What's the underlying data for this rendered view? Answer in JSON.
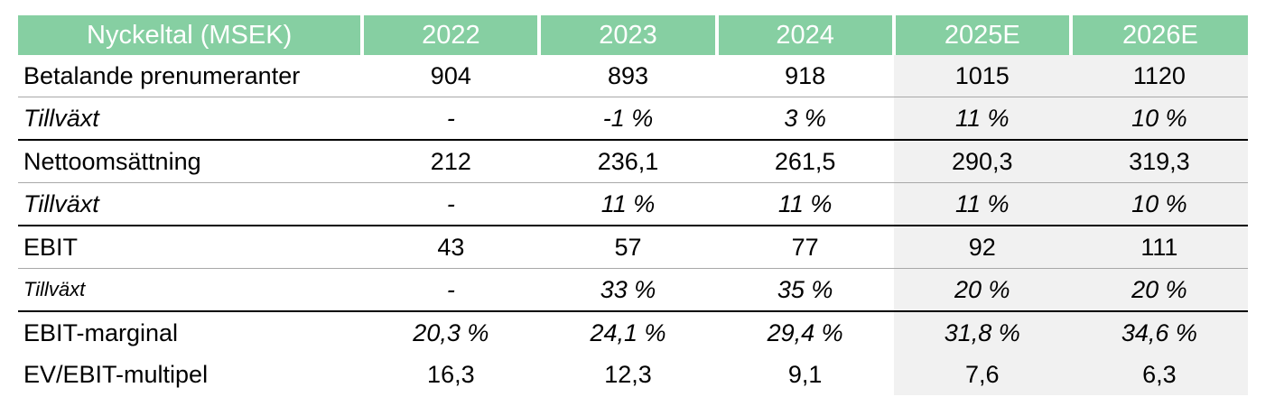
{
  "table": {
    "header": {
      "label": "Nyckeltal (MSEK)",
      "years": [
        "2022",
        "2023",
        "2024",
        "2025E",
        "2026E"
      ]
    },
    "rows": [
      {
        "label": "Betalande prenumeranter",
        "values": [
          "904",
          "893",
          "918",
          "1015",
          "1120"
        ]
      },
      {
        "label": "Tillväxt",
        "values": [
          "-",
          "-1 %",
          "3 %",
          "11 %",
          "10 %"
        ]
      },
      {
        "label": "Nettoomsättning",
        "values": [
          "212",
          "236,1",
          "261,5",
          "290,3",
          "319,3"
        ]
      },
      {
        "label": "Tillväxt",
        "values": [
          "-",
          "11 %",
          "11 %",
          "11 %",
          "10 %"
        ]
      },
      {
        "label": "EBIT",
        "values": [
          "43",
          "57",
          "77",
          "92",
          "111"
        ]
      },
      {
        "label": "Tillväxt",
        "values": [
          "-",
          "33 %",
          "35 %",
          "20 %",
          "20 %"
        ]
      },
      {
        "label": "EBIT-marginal",
        "values": [
          "20,3 %",
          "24,1 %",
          "29,4 %",
          "31,8 %",
          "34,6 %"
        ]
      },
      {
        "label": "EV/EBIT-multipel",
        "values": [
          "16,3",
          "12,3",
          "9,1",
          "7,6",
          "6,3"
        ]
      }
    ]
  },
  "colors": {
    "header_bg": "#86cfa2",
    "header_text": "#ffffff",
    "estimate_bg": "#f1f1f1"
  }
}
